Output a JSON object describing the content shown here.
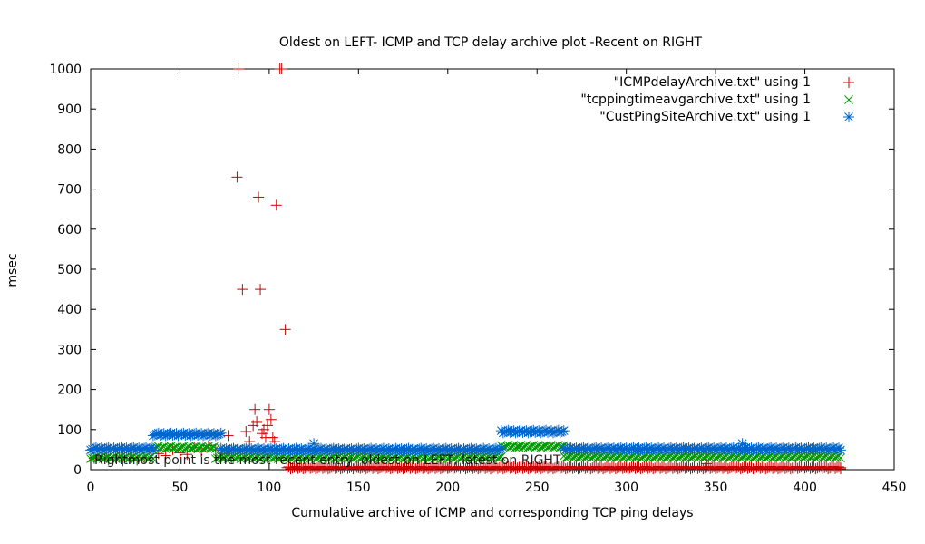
{
  "chart_data": {
    "type": "scatter",
    "title": "Oldest on LEFT- ICMP and TCP delay archive plot -Recent on RIGHT",
    "xlabel": "Cumulative archive of ICMP and corresponding TCP ping delays",
    "ylabel": "msec",
    "xlim": [
      0,
      450
    ],
    "ylim": [
      0,
      1000
    ],
    "xticks": [
      0,
      50,
      100,
      150,
      200,
      250,
      300,
      350,
      400,
      450
    ],
    "yticks": [
      0,
      100,
      200,
      300,
      400,
      500,
      600,
      700,
      800,
      900,
      1000
    ],
    "grid": false,
    "legend_position": "top-right",
    "annotation": "Rightmost point is the most recent entry, oldest on LEFT, latest on RIGHT",
    "series": [
      {
        "name": "\"ICMPdelayArchive.txt\" using 1",
        "color": "#cc0000",
        "marker": "plus",
        "points": [
          [
            2,
            28
          ],
          [
            6,
            32
          ],
          [
            10,
            25
          ],
          [
            14,
            30
          ],
          [
            18,
            22
          ],
          [
            22,
            28
          ],
          [
            26,
            24
          ],
          [
            30,
            30
          ],
          [
            34,
            45
          ],
          [
            38,
            40
          ],
          [
            42,
            35
          ],
          [
            46,
            50
          ],
          [
            50,
            42
          ],
          [
            54,
            38
          ],
          [
            58,
            55
          ],
          [
            62,
            45
          ],
          [
            66,
            60
          ],
          [
            70,
            50
          ],
          [
            74,
            40
          ],
          [
            77,
            85
          ],
          [
            82,
            730
          ],
          [
            83,
            1000
          ],
          [
            85,
            450
          ],
          [
            87,
            95
          ],
          [
            89,
            70
          ],
          [
            91,
            110
          ],
          [
            92,
            150
          ],
          [
            93,
            120
          ],
          [
            94,
            680
          ],
          [
            95,
            450
          ],
          [
            96,
            90
          ],
          [
            97,
            100
          ],
          [
            98,
            80
          ],
          [
            99,
            110
          ],
          [
            100,
            150
          ],
          [
            101,
            125
          ],
          [
            102,
            80
          ],
          [
            103,
            70
          ],
          [
            104,
            660
          ],
          [
            106,
            1000
          ],
          [
            107,
            1000
          ],
          [
            109,
            350
          ],
          [
            112,
            5
          ],
          [
            150,
            5
          ],
          [
            200,
            5
          ],
          [
            250,
            5
          ],
          [
            300,
            5
          ],
          [
            345,
            15
          ],
          [
            350,
            5
          ],
          [
            400,
            5
          ],
          [
            420,
            5
          ]
        ],
        "bands": [
          [
            110,
            420,
            5
          ]
        ]
      },
      {
        "name": "\"tcppingtimeavgarchive.txt\" using 1",
        "color": "#009900",
        "marker": "x",
        "points": [
          [
            126,
            40
          ],
          [
            240,
            55
          ],
          [
            255,
            60
          ],
          [
            365,
            45
          ]
        ],
        "bands": [
          [
            0,
            35,
            30
          ],
          [
            35,
            70,
            55
          ],
          [
            70,
            230,
            30
          ],
          [
            230,
            265,
            58
          ],
          [
            265,
            420,
            32
          ]
        ]
      },
      {
        "name": "\"CustPingSiteArchive.txt\" using 1",
        "color": "#0066cc",
        "marker": "star",
        "points": [
          [
            125,
            65
          ],
          [
            365,
            65
          ]
        ],
        "bands": [
          [
            0,
            35,
            52
          ],
          [
            35,
            73,
            88
          ],
          [
            73,
            230,
            50
          ],
          [
            230,
            265,
            95
          ],
          [
            265,
            420,
            52
          ]
        ]
      }
    ]
  }
}
